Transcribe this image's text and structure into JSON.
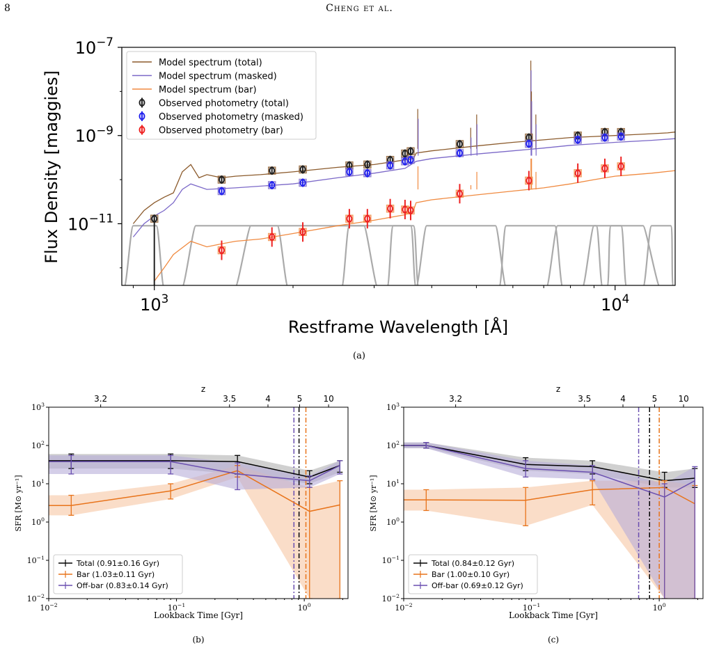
{
  "header": {
    "page_number": "8",
    "running_head": "Cheng et al."
  },
  "colors": {
    "model_total": "#8B5A2B",
    "model_masked": "#7B68C8",
    "model_bar": "#F08A40",
    "obs_total": "#222222",
    "obs_masked": "#2222EE",
    "obs_bar": "#EE2222",
    "filter": "#AAAAAA",
    "sfh_total": "#000000",
    "sfh_bar": "#E8731A",
    "sfh_offbar": "#6A4FB0",
    "band_total": "#AAAAAA",
    "band_bar": "#F6C7A4",
    "band_offbar": "#B8AED8"
  },
  "panel_a": {
    "caption": "(a)",
    "ylabel": "Flux Density [maggies]",
    "xlabel": "Restframe Wavelength [Å]",
    "yticks": [
      {
        "base": "10",
        "exp": "−7"
      },
      {
        "base": "10",
        "exp": "−9"
      },
      {
        "base": "10",
        "exp": "−11"
      }
    ],
    "xticks": [
      {
        "base": "10",
        "exp": "3"
      },
      {
        "base": "10",
        "exp": "4"
      }
    ],
    "legend": [
      {
        "label": "Model spectrum (total)",
        "kind": "line",
        "color": "#8B5A2B"
      },
      {
        "label": "Model spectrum (masked)",
        "kind": "line",
        "color": "#7B68C8"
      },
      {
        "label": "Model spectrum (bar)",
        "kind": "line",
        "color": "#F08A40"
      },
      {
        "label": "Observed photometry (total)",
        "kind": "point",
        "color": "#222222"
      },
      {
        "label": "Observed photometry (masked)",
        "kind": "point",
        "color": "#2222EE"
      },
      {
        "label": "Observed photometry (bar)",
        "kind": "point",
        "color": "#EE2222"
      }
    ]
  },
  "panel_b": {
    "caption": "(b)",
    "z_label": "z",
    "z_ticks": [
      {
        "label": "3.2",
        "t": 0.0255
      },
      {
        "label": "3.5",
        "t": 0.26
      },
      {
        "label": "4",
        "t": 0.52
      },
      {
        "label": "5",
        "t": 0.92
      },
      {
        "label": "10",
        "t": 1.55
      }
    ],
    "ylabel": "SFR [M⊙ yr⁻¹]",
    "xlabel": "Lookback Time [Gyr]",
    "xticks": [
      {
        "base": "10",
        "exp": "−2",
        "t": 0.01
      },
      {
        "base": "10",
        "exp": "−1",
        "t": 0.1
      },
      {
        "base": "10",
        "exp": "0",
        "t": 1
      }
    ],
    "yticks": [
      {
        "base": "10",
        "exp": "3",
        "v": 1000
      },
      {
        "base": "10",
        "exp": "2",
        "v": 100
      },
      {
        "base": "10",
        "exp": "1",
        "v": 10
      },
      {
        "base": "10",
        "exp": "0",
        "v": 1
      },
      {
        "base": "10",
        "exp": "−1",
        "v": 0.1
      },
      {
        "base": "10",
        "exp": "−2",
        "v": 0.01
      }
    ],
    "legend": [
      {
        "label": "Total (0.91±0.16 Gyr)",
        "color": "#000000"
      },
      {
        "label": "Bar (1.03±0.11 Gyr)",
        "color": "#E8731A"
      },
      {
        "label": "Off-bar (0.83±0.14 Gyr)",
        "color": "#6A4FB0"
      }
    ]
  },
  "panel_c": {
    "caption": "(c)",
    "z_label": "z",
    "z_ticks": [
      {
        "label": "3.2",
        "t": 0.0255
      },
      {
        "label": "3.5",
        "t": 0.26
      },
      {
        "label": "4",
        "t": 0.52
      },
      {
        "label": "5",
        "t": 0.92
      },
      {
        "label": "10",
        "t": 1.55
      }
    ],
    "ylabel": "SFR [M⊙ yr⁻¹]",
    "xlabel": "Lookback Time [Gyr]",
    "xticks": [
      {
        "base": "10",
        "exp": "−2",
        "t": 0.01
      },
      {
        "base": "10",
        "exp": "−1",
        "t": 0.1
      },
      {
        "base": "10",
        "exp": "0",
        "t": 1
      }
    ],
    "yticks": [
      {
        "base": "10",
        "exp": "3",
        "v": 1000
      },
      {
        "base": "10",
        "exp": "2",
        "v": 100
      },
      {
        "base": "10",
        "exp": "1",
        "v": 10
      },
      {
        "base": "10",
        "exp": "0",
        "v": 1
      },
      {
        "base": "10",
        "exp": "−1",
        "v": 0.1
      },
      {
        "base": "10",
        "exp": "−2",
        "v": 0.01
      }
    ],
    "legend": [
      {
        "label": "Total (0.84±0.12 Gyr)",
        "color": "#000000"
      },
      {
        "label": "Bar (1.00±0.10 Gyr)",
        "color": "#E8731A"
      },
      {
        "label": "Off-bar (0.69±0.12 Gyr)",
        "color": "#6A4FB0"
      }
    ]
  },
  "chart_data": [
    {
      "type": "line",
      "panel": "a",
      "xscale": "log",
      "yscale": "log",
      "xlim": [
        850,
        13500
      ],
      "ylim": [
        4e-13,
        1e-07
      ],
      "series": [
        {
          "name": "Model spectrum (total)",
          "x": [
            900,
            950,
            1000,
            1050,
            1100,
            1150,
            1200,
            1250,
            1300,
            1400,
            1500,
            1700,
            2000,
            2500,
            3000,
            3500,
            3650,
            3700,
            4000,
            5000,
            6000,
            7000,
            8000,
            9000,
            10000,
            11000,
            12000,
            13000,
            13500
          ],
          "y": [
            1e-11,
            2e-11,
            3e-11,
            4e-11,
            5e-11,
            1.5e-10,
            2.2e-10,
            1.1e-10,
            1.3e-10,
            1.1e-10,
            1.2e-10,
            1.3e-10,
            1.5e-10,
            1.9e-10,
            2.2e-10,
            2.8e-10,
            3e-10,
            4e-10,
            4.5e-10,
            5.8e-10,
            7e-10,
            8e-10,
            9e-10,
            9.5e-10,
            1e-09,
            1.05e-09,
            1.1e-09,
            1.15e-09,
            1.2e-09
          ]
        },
        {
          "name": "Model spectrum (masked)",
          "x": [
            900,
            950,
            1000,
            1050,
            1100,
            1150,
            1200,
            1300,
            1500,
            2000,
            2500,
            3000,
            3500,
            3700,
            4000,
            5000,
            6000,
            7000,
            8000,
            9000,
            10000,
            12000,
            13500
          ],
          "y": [
            5e-12,
            1e-11,
            1.5e-11,
            2e-11,
            3e-11,
            6e-11,
            8e-11,
            6e-11,
            6.5e-11,
            8e-11,
            1.1e-10,
            1.4e-10,
            1.8e-10,
            2.6e-10,
            3e-10,
            3.8e-10,
            4.5e-10,
            5.2e-10,
            6e-10,
            6.5e-10,
            7e-10,
            7.8e-10,
            8.5e-10
          ]
        },
        {
          "name": "Model spectrum (bar)",
          "x": [
            1000,
            1050,
            1100,
            1200,
            1300,
            1400,
            1500,
            1700,
            2000,
            2500,
            3000,
            3500,
            3650,
            3700,
            4000,
            5000,
            6000,
            7000,
            8000,
            9000,
            10000,
            12000,
            13500
          ],
          "y": [
            5e-13,
            1e-12,
            2e-12,
            4e-12,
            3e-12,
            3.5e-12,
            4e-12,
            4.5e-12,
            6e-12,
            9e-12,
            1.2e-11,
            1.6e-11,
            2e-11,
            3e-11,
            3.5e-11,
            4.5e-11,
            5.5e-11,
            6.5e-11,
            8e-11,
            1e-10,
            1.2e-10,
            1.4e-10,
            1.6e-10
          ]
        },
        {
          "name": "Observed photometry (total)",
          "kind": "points",
          "x": [
            1000,
            1400,
            1800,
            2100,
            2650,
            2900,
            3250,
            3500,
            3600,
            4600,
            6500,
            8300,
            9500,
            10300
          ],
          "y": [
            1.3e-11,
            1e-10,
            1.6e-10,
            1.7e-10,
            2.1e-10,
            2.2e-10,
            2.8e-10,
            3.9e-10,
            4.4e-10,
            6.4e-10,
            9e-10,
            1e-09,
            1.2e-09,
            1.2e-09
          ]
        },
        {
          "name": "Observed photometry (masked)",
          "kind": "points",
          "x": [
            1400,
            1800,
            2100,
            2650,
            2900,
            3250,
            3500,
            3600,
            4600,
            6500,
            8300,
            9500,
            10300
          ],
          "y": [
            5.5e-11,
            7.5e-11,
            8.5e-11,
            1.5e-10,
            1.4e-10,
            2.1e-10,
            2.6e-10,
            2.8e-10,
            4e-10,
            6.5e-10,
            8e-10,
            9e-10,
            9.5e-10
          ]
        },
        {
          "name": "Observed photometry (bar)",
          "kind": "points",
          "x": [
            1400,
            1800,
            2100,
            2650,
            2900,
            3250,
            3500,
            3600,
            4600,
            6500,
            8300,
            9500,
            10300
          ],
          "y": [
            2.5e-12,
            5e-12,
            6.5e-12,
            1.3e-11,
            1.3e-11,
            2.2e-11,
            2.1e-11,
            2e-11,
            4.8e-11,
            9.5e-11,
            1.4e-10,
            1.8e-10,
            2e-10
          ]
        }
      ]
    },
    {
      "type": "line",
      "panel": "b",
      "xscale": "log",
      "yscale": "log",
      "xlim": [
        0.01,
        2.2
      ],
      "ylim": [
        0.01,
        1000
      ],
      "vlines": [
        {
          "t": 0.83,
          "color": "#6A4FB0"
        },
        {
          "t": 0.91,
          "color": "#000000"
        },
        {
          "t": 1.03,
          "color": "#E8731A"
        }
      ],
      "series": [
        {
          "name": "Total",
          "t": [
            0.01,
            0.015,
            0.09,
            0.3,
            1.1,
            1.9
          ],
          "sfr": [
            40,
            40,
            40,
            38,
            15,
            30
          ],
          "lo": [
            25,
            25,
            25,
            18,
            10,
            20
          ],
          "hi": [
            60,
            60,
            60,
            55,
            22,
            40
          ]
        },
        {
          "name": "Bar",
          "t": [
            0.01,
            0.015,
            0.09,
            0.3,
            1.1,
            1.9
          ],
          "sfr": [
            2.7,
            2.7,
            6.5,
            22,
            1.9,
            2.8
          ],
          "lo": [
            1.5,
            1.5,
            4,
            15,
            0.01,
            0.01
          ],
          "hi": [
            5,
            5,
            10,
            30,
            8,
            12
          ]
        },
        {
          "name": "Off-bar",
          "t": [
            0.01,
            0.015,
            0.09,
            0.3,
            1.1,
            1.9
          ],
          "sfr": [
            38,
            38,
            38,
            18,
            12,
            30
          ],
          "lo": [
            18,
            18,
            18,
            7,
            8,
            18
          ],
          "hi": [
            55,
            55,
            55,
            35,
            16,
            40
          ]
        }
      ]
    },
    {
      "type": "line",
      "panel": "c",
      "xscale": "log",
      "yscale": "log",
      "xlim": [
        0.01,
        2.2
      ],
      "ylim": [
        0.01,
        1000
      ],
      "vlines": [
        {
          "t": 0.69,
          "color": "#6A4FB0"
        },
        {
          "t": 0.84,
          "color": "#000000"
        },
        {
          "t": 1.0,
          "color": "#E8731A"
        }
      ],
      "series": [
        {
          "name": "Total",
          "t": [
            0.01,
            0.015,
            0.09,
            0.3,
            1.1,
            1.9
          ],
          "sfr": [
            100,
            100,
            32,
            28,
            12,
            14
          ],
          "lo": [
            85,
            85,
            22,
            18,
            8,
            8
          ],
          "hi": [
            120,
            120,
            48,
            40,
            20,
            25
          ]
        },
        {
          "name": "Bar",
          "t": [
            0.01,
            0.015,
            0.09,
            0.3,
            1.1,
            1.9
          ],
          "sfr": [
            3.8,
            3.8,
            3.7,
            7,
            8,
            3
          ],
          "lo": [
            2,
            2,
            0.8,
            2.8,
            0.01,
            0.01
          ],
          "hi": [
            7,
            7,
            8,
            12,
            12,
            9
          ]
        },
        {
          "name": "Off-bar",
          "t": [
            0.01,
            0.015,
            0.09,
            0.3,
            1.1,
            1.9
          ],
          "sfr": [
            100,
            100,
            25,
            20,
            4.5,
            12
          ],
          "lo": [
            85,
            85,
            15,
            13,
            0.01,
            0.01
          ],
          "hi": [
            120,
            120,
            40,
            30,
            10,
            28
          ]
        }
      ]
    }
  ]
}
